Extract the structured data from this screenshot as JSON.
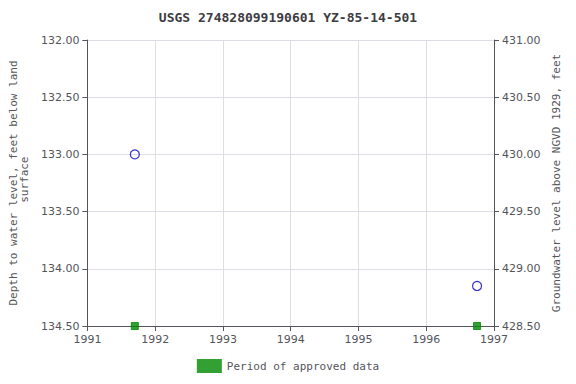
{
  "chart_data": {
    "type": "scatter",
    "title": "USGS 274828099190601 YZ-85-14-501",
    "ylabel": "Depth to water level, feet below land\n surface",
    "y2label": "Groundwater level above NGVD 1929, feet",
    "x": [
      1991.7,
      1996.75
    ],
    "xlim": [
      1991,
      1997
    ],
    "xticks": [
      1991,
      1992,
      1993,
      1994,
      1995,
      1996,
      1997
    ],
    "ylim": [
      134.5,
      132.0
    ],
    "yticks": [
      {
        "value": 132.0,
        "label": "132.00"
      },
      {
        "value": 132.5,
        "label": "132.50"
      },
      {
        "value": 133.0,
        "label": "133.00"
      },
      {
        "value": 133.5,
        "label": "133.50"
      },
      {
        "value": 134.0,
        "label": "134.00"
      },
      {
        "value": 134.5,
        "label": "134.50"
      }
    ],
    "y2lim": [
      428.5,
      431.0
    ],
    "y2ticks": [
      {
        "value": 431.0,
        "label": "431.00"
      },
      {
        "value": 430.5,
        "label": "430.50"
      },
      {
        "value": 430.0,
        "label": "430.00"
      },
      {
        "value": 429.5,
        "label": "429.50"
      },
      {
        "value": 429.0,
        "label": "429.00"
      },
      {
        "value": 428.5,
        "label": "428.50"
      }
    ],
    "grid": true,
    "legend": "bottom",
    "series": [
      {
        "color": "#0000bb",
        "marker": "open_circle",
        "values": [
          133.0,
          134.15
        ]
      },
      {
        "name": "Period of approved data",
        "color": "#008800",
        "marker": "square",
        "values": [
          134.5,
          134.5
        ]
      }
    ]
  }
}
